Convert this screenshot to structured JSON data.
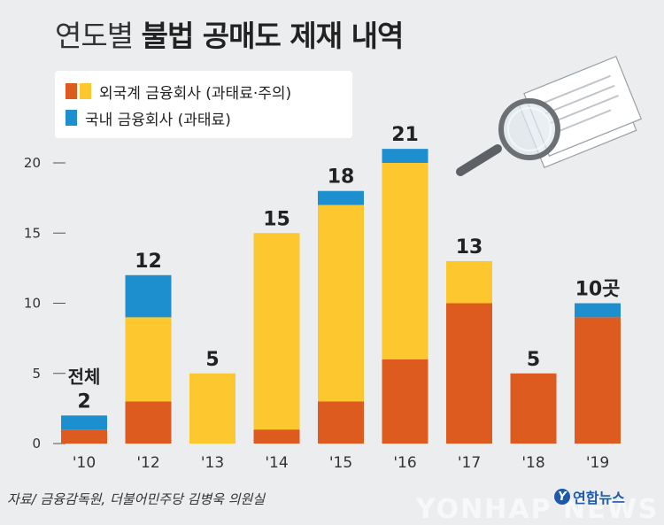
{
  "title": {
    "light": "연도별",
    "bold": "불법 공매도 제재 내역"
  },
  "legend": [
    {
      "label": "외국계 금융회사 (과태료·주의)",
      "colors": [
        "#dd5b1f",
        "#fdc72f"
      ]
    },
    {
      "label": "국내 금융회사 (과태료)",
      "colors": [
        "#1e8fce"
      ]
    }
  ],
  "source": "자료/ 금융감독원, 더불어민주당 김병욱 의원실",
  "logo": {
    "mark": "Y",
    "text": "연합뉴스"
  },
  "watermark": "YONHAP NEWS",
  "colors": {
    "foreign_orange": "#dd5b1f",
    "foreign_yellow": "#fdc72f",
    "domestic_blue": "#1e8fce"
  },
  "chart_data": {
    "type": "bar",
    "stacked": true,
    "categories": [
      "'10",
      "'12",
      "'13",
      "'14",
      "'15",
      "'16",
      "'17",
      "'18",
      "'19"
    ],
    "series": [
      {
        "name": "외국계 금융회사 (과태료)",
        "color": "#dd5b1f",
        "values": [
          1,
          3,
          0,
          1,
          3,
          6,
          10,
          5,
          9
        ]
      },
      {
        "name": "외국계 금융회사 (주의)",
        "color": "#fdc72f",
        "values": [
          0,
          6,
          5,
          14,
          14,
          14,
          3,
          0,
          0
        ]
      },
      {
        "name": "국내 금융회사 (과태료)",
        "color": "#1e8fce",
        "values": [
          1,
          3,
          0,
          0,
          1,
          1,
          0,
          0,
          1
        ]
      }
    ],
    "totals": [
      2,
      12,
      5,
      15,
      18,
      21,
      13,
      5,
      10
    ],
    "total_labels": [
      "2",
      "12",
      "5",
      "15",
      "18",
      "21",
      "13",
      "5",
      "10곳"
    ],
    "first_bar_note": "전체",
    "yticks": [
      0,
      5,
      10,
      15,
      20
    ],
    "ylim": [
      0,
      20
    ],
    "grid": false
  }
}
